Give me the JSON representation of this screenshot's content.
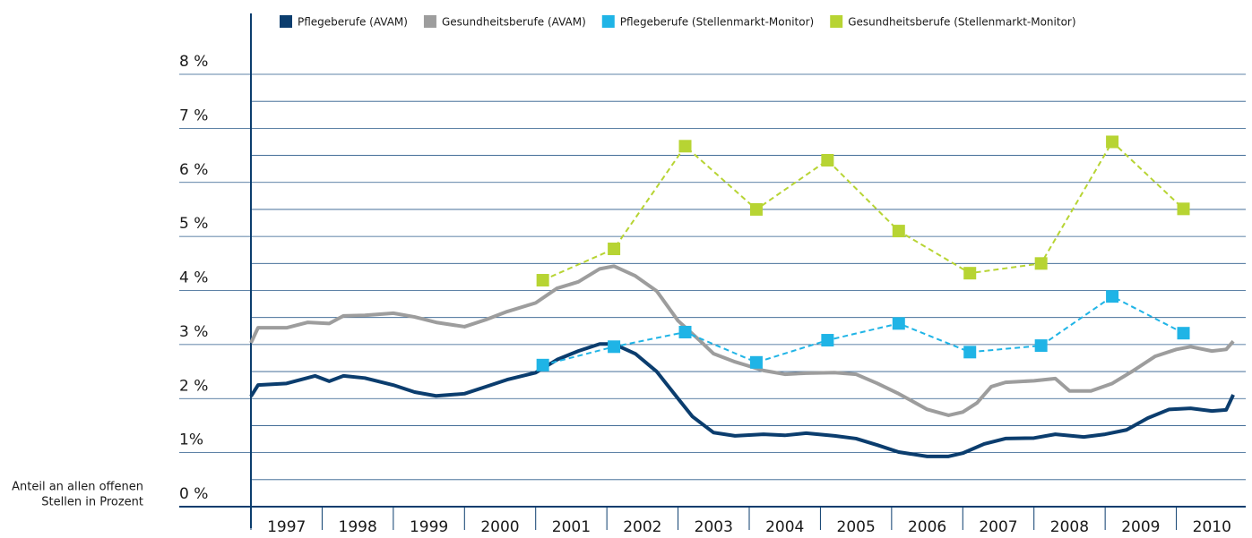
{
  "chart_data": {
    "type": "line",
    "y_label_lines": [
      "Anteil an allen offenen",
      "Stellen in Prozent"
    ],
    "xlim": [
      1997,
      2011
    ],
    "xticks": [
      1997,
      1998,
      1999,
      2000,
      2001,
      2002,
      2003,
      2004,
      2005,
      2006,
      2007,
      2008,
      2009,
      2010
    ],
    "ylim": [
      0,
      8
    ],
    "yticks": [
      {
        "value": 0,
        "label": "0 %"
      },
      {
        "value": 1,
        "label": "1%"
      },
      {
        "value": 2,
        "label": "2 %"
      },
      {
        "value": 3,
        "label": "3 %"
      },
      {
        "value": 4,
        "label": "4 %"
      },
      {
        "value": 5,
        "label": "5 %"
      },
      {
        "value": 6,
        "label": "6 %"
      },
      {
        "value": 7,
        "label": "7 %"
      },
      {
        "value": 8,
        "label": "8 %"
      }
    ],
    "minor_yticks": [
      0.5,
      1.5,
      2.5,
      3.5,
      4.5,
      5.5,
      6.5,
      7.5
    ],
    "grid": true,
    "legend": "top",
    "series": [
      {
        "name": "Pflegeberufe (AVAM)",
        "color": "#0b3d6e",
        "dashed": false,
        "marker": "none",
        "x": [
          1997.0,
          1997.1,
          1997.5,
          1997.9,
          1998.1,
          1998.3,
          1998.6,
          1999.0,
          1999.3,
          1999.6,
          2000.0,
          2000.3,
          2000.6,
          2001.0,
          2001.3,
          2001.6,
          2001.9,
          2002.1,
          2002.4,
          2002.7,
          2003.0,
          2003.2,
          2003.5,
          2003.8,
          2004.2,
          2004.5,
          2004.8,
          2005.2,
          2005.5,
          2005.8,
          2006.1,
          2006.5,
          2006.8,
          2007.0,
          2007.3,
          2007.6,
          2008.0,
          2008.3,
          2008.7,
          2009.0,
          2009.3,
          2009.6,
          2009.9,
          2010.2,
          2010.5,
          2010.7,
          2010.8
        ],
        "values": [
          2.04,
          2.25,
          2.28,
          2.42,
          2.32,
          2.42,
          2.38,
          2.25,
          2.12,
          2.05,
          2.09,
          2.22,
          2.35,
          2.48,
          2.72,
          2.88,
          3.01,
          3.01,
          2.83,
          2.5,
          2.0,
          1.67,
          1.37,
          1.31,
          1.34,
          1.32,
          1.36,
          1.31,
          1.26,
          1.14,
          1.01,
          0.93,
          0.93,
          0.99,
          1.16,
          1.26,
          1.27,
          1.34,
          1.29,
          1.34,
          1.42,
          1.64,
          1.8,
          1.82,
          1.77,
          1.79,
          2.07
        ]
      },
      {
        "name": "Gesundheitsberufe (AVAM)",
        "color": "#9d9d9d",
        "dashed": false,
        "marker": "none",
        "x": [
          1997.0,
          1997.1,
          1997.5,
          1997.8,
          1998.1,
          1998.3,
          1998.6,
          1999.0,
          1999.3,
          1999.6,
          2000.0,
          2000.3,
          2000.6,
          2001.0,
          2001.3,
          2001.6,
          2001.9,
          2002.1,
          2002.4,
          2002.7,
          2003.0,
          2003.3,
          2003.5,
          2003.8,
          2004.2,
          2004.5,
          2004.8,
          2005.2,
          2005.5,
          2005.8,
          2006.1,
          2006.5,
          2006.8,
          2007.0,
          2007.2,
          2007.4,
          2007.6,
          2008.0,
          2008.3,
          2008.5,
          2008.8,
          2009.1,
          2009.4,
          2009.7,
          2010.0,
          2010.2,
          2010.5,
          2010.7,
          2010.8
        ],
        "values": [
          3.03,
          3.31,
          3.31,
          3.41,
          3.39,
          3.53,
          3.54,
          3.58,
          3.51,
          3.41,
          3.33,
          3.46,
          3.61,
          3.77,
          4.04,
          4.16,
          4.4,
          4.45,
          4.27,
          3.99,
          3.44,
          3.08,
          2.83,
          2.68,
          2.52,
          2.45,
          2.47,
          2.48,
          2.45,
          2.28,
          2.09,
          1.8,
          1.69,
          1.75,
          1.92,
          2.22,
          2.3,
          2.33,
          2.37,
          2.14,
          2.14,
          2.28,
          2.52,
          2.78,
          2.91,
          2.96,
          2.88,
          2.91,
          3.06
        ]
      },
      {
        "name": "Pflegeberufe (Stellenmarkt-Monitor)",
        "color": "#1fb4e6",
        "dashed": true,
        "marker": "square",
        "x": [
          2001.1,
          2002.1,
          2003.1,
          2004.1,
          2005.1,
          2006.1,
          2007.1,
          2008.1,
          2009.1,
          2010.1
        ],
        "values": [
          2.62,
          2.96,
          3.23,
          2.67,
          3.08,
          3.39,
          2.86,
          2.98,
          3.89,
          3.21
        ]
      },
      {
        "name": "Gesundheitsberufe (Stellenmarkt-Monitor)",
        "color": "#b7d433",
        "dashed": true,
        "marker": "square",
        "x": [
          2001.1,
          2002.1,
          2003.1,
          2004.1,
          2005.1,
          2006.1,
          2007.1,
          2008.1,
          2009.1,
          2010.1
        ],
        "values": [
          4.19,
          4.77,
          6.67,
          5.5,
          6.41,
          5.1,
          4.32,
          4.5,
          6.75,
          5.51
        ]
      }
    ]
  }
}
